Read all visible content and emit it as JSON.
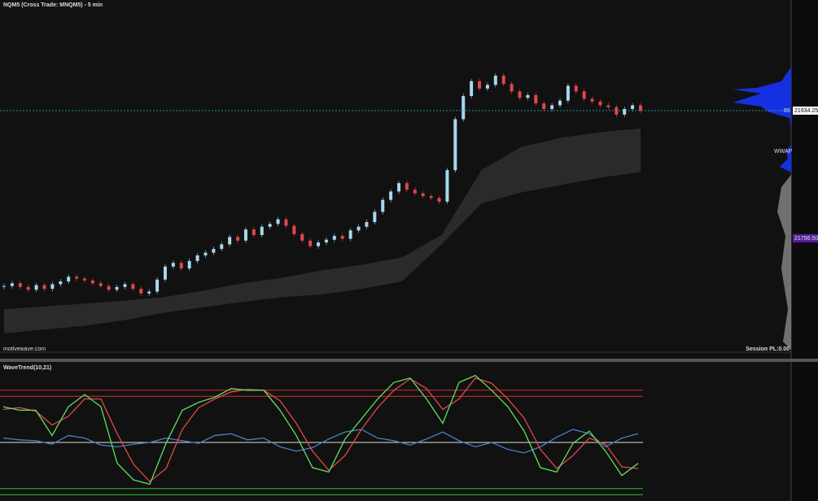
{
  "header": {
    "title": "NQM5 (Cross Trade: MNQM5) - 5 min"
  },
  "price_panel": {
    "closes": [
      21745,
      21748,
      21744,
      21741,
      21746,
      21742,
      21747,
      21750,
      21755,
      21753,
      21751,
      21748,
      21745,
      21741,
      21744,
      21747,
      21742,
      21737,
      21739,
      21752,
      21766,
      21770,
      21764,
      21772,
      21778,
      21781,
      21785,
      21790,
      21798,
      21794,
      21806,
      21800,
      21809,
      21812,
      21817,
      21810,
      21801,
      21794,
      21788,
      21792,
      21795,
      21799,
      21796,
      21805,
      21809,
      21814,
      21825,
      21838,
      21847,
      21856,
      21849,
      21845,
      21842,
      21840,
      21836,
      21870,
      21925,
      21950,
      21966,
      21958,
      21962,
      21972,
      21963,
      21955,
      21948,
      21951,
      21942,
      21936,
      21940,
      21945,
      21961,
      21955,
      21947,
      21944,
      21940,
      21938,
      21930,
      21936,
      21940,
      21934
    ],
    "wwap_upper": [
      21720,
      21723,
      21726,
      21729,
      21733,
      21740,
      21748,
      21754,
      21762,
      21768,
      21776,
      21800,
      21870,
      21895,
      21905,
      21911,
      21915
    ],
    "wwap_lower": [
      21694,
      21698,
      21702,
      21708,
      21716,
      21722,
      21728,
      21733,
      21736,
      21742,
      21750,
      21790,
      21834,
      21846,
      21854,
      21862,
      21868
    ],
    "wwap_label": "WWAP",
    "last_price": {
      "value": 21934.25,
      "label": "21934.25"
    },
    "marker": "65",
    "poc_price": {
      "value": 21796.5,
      "label": "21796.50"
    },
    "watermark": "motivewave.com",
    "session_pl": "Session PL:0.00"
  },
  "wavetrend": {
    "title": "WaveTrend(10,21)",
    "levels": [
      60,
      53,
      0,
      -53,
      -60
    ],
    "wt1": [
      41,
      37,
      37,
      8,
      41,
      55,
      41,
      -24,
      -43,
      -48,
      -1,
      37,
      46,
      52,
      62,
      60,
      60,
      37,
      8,
      -29,
      -34,
      4,
      27,
      50,
      69,
      74,
      50,
      22,
      69,
      77,
      60,
      41,
      13,
      -29,
      -34,
      -1,
      13,
      -10,
      -38,
      -24
    ],
    "wt2": [
      38,
      40,
      36,
      20,
      30,
      50,
      50,
      10,
      -25,
      -45,
      -30,
      15,
      40,
      50,
      58,
      61,
      60,
      48,
      22,
      -10,
      -32,
      -15,
      15,
      40,
      60,
      73,
      62,
      38,
      50,
      74,
      68,
      50,
      28,
      -8,
      -30,
      -15,
      5,
      -2,
      -28,
      -30
    ],
    "momentum": [
      5,
      3,
      2,
      -2,
      8,
      5,
      -3,
      -5,
      -2,
      0,
      5,
      2,
      -1,
      8,
      10,
      3,
      5,
      -5,
      -10,
      -6,
      4,
      12,
      15,
      5,
      2,
      -3,
      4,
      12,
      2,
      -5,
      0,
      -8,
      -12,
      -5,
      6,
      15,
      10,
      -5,
      5,
      10
    ]
  }
}
